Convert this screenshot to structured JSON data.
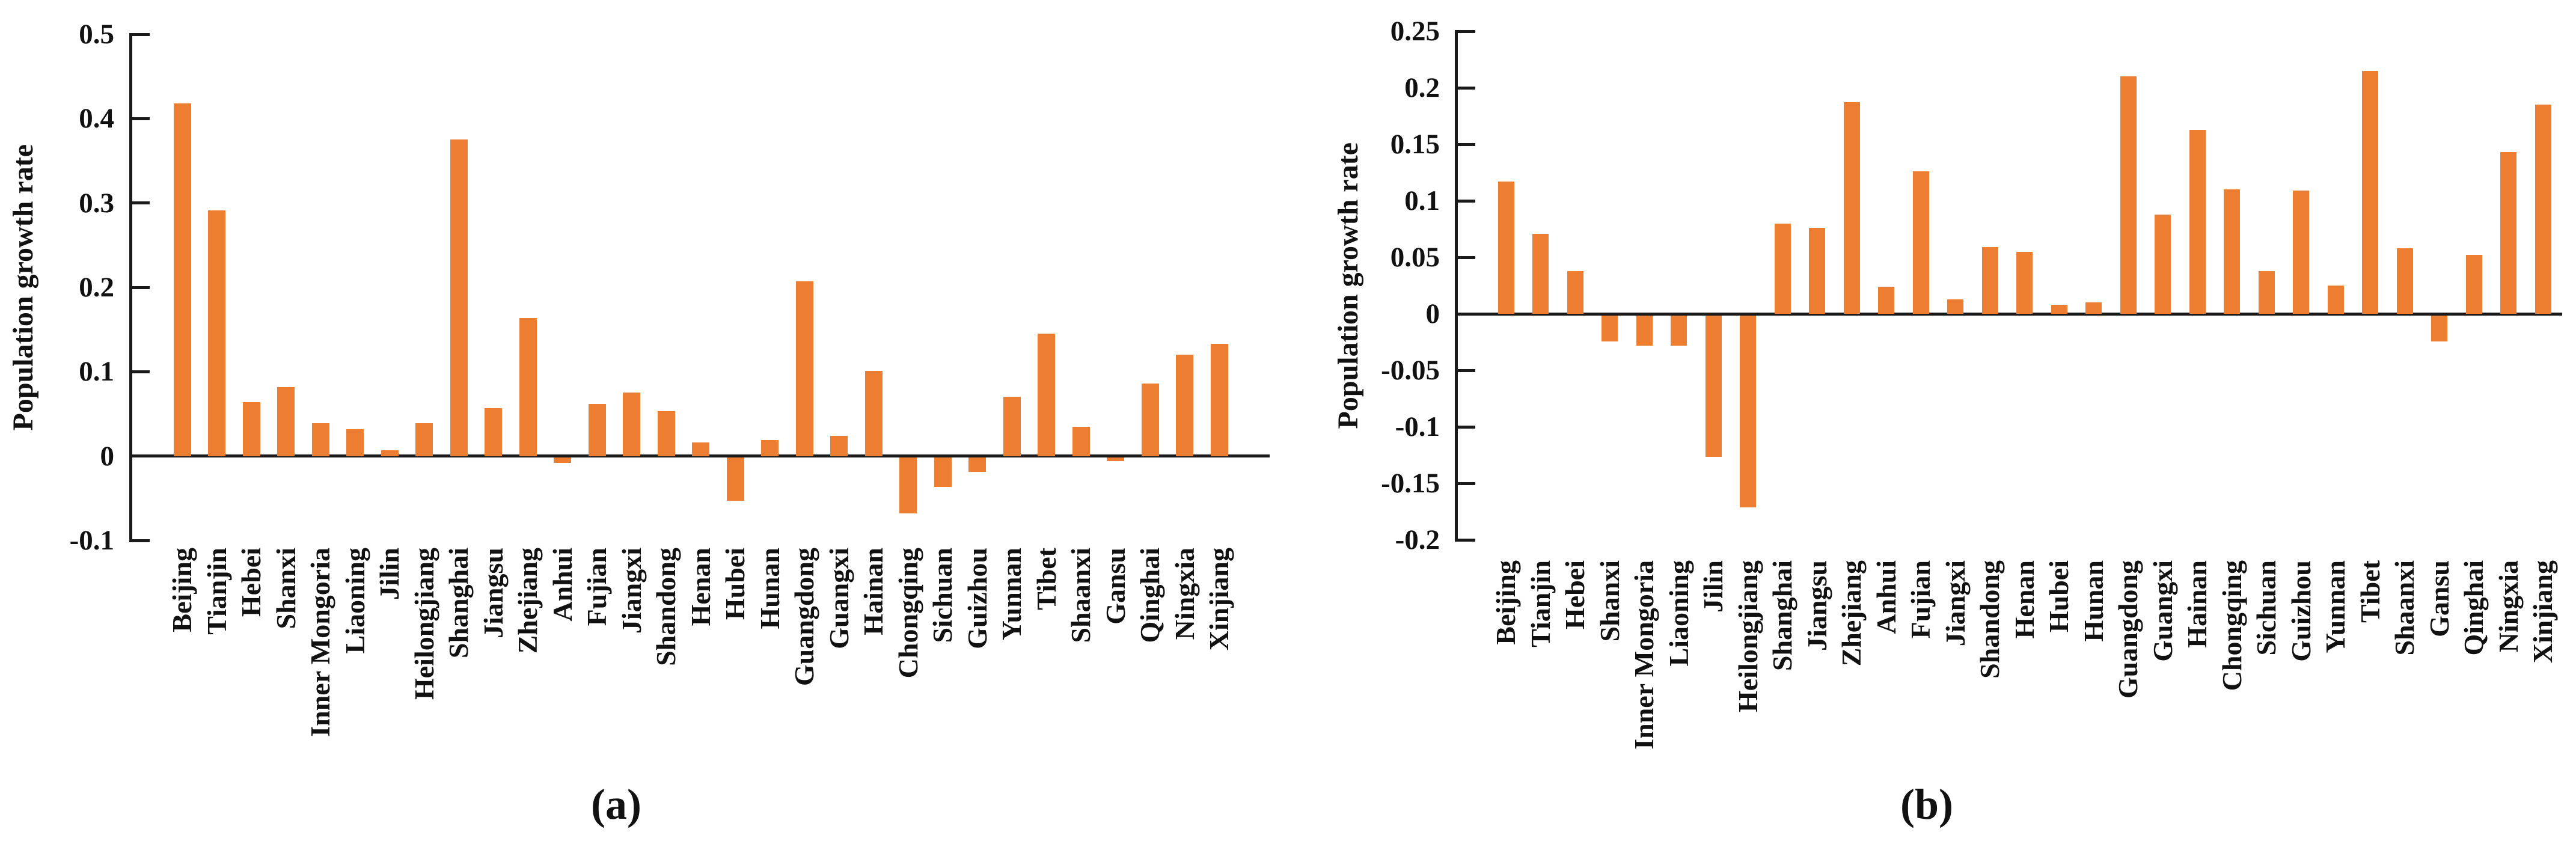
{
  "figure": {
    "background": "#ffffff",
    "axis_color": "#1a1a1a",
    "text_color": "#111111"
  },
  "chart_data": [
    {
      "id": "a",
      "type": "bar",
      "caption": "(a)",
      "ylabel": "Population growth rate",
      "bar_color": "#ED7D31",
      "grid": false,
      "legend": false,
      "ylim": [
        -0.1,
        0.5
      ],
      "ytick_labels": [
        "0.5",
        "0.4",
        "0.3",
        "0.2",
        "0.1",
        "0",
        "-0.1"
      ],
      "categories": [
        "Beijing",
        "Tianjin",
        "Hebei",
        "Shanxi",
        "Inner Mongoria",
        "Liaoning",
        "Jilin",
        "Heilongjiang",
        "Shanghai",
        "Jiangsu",
        "Zhejiang",
        "Anhui",
        "Fujian",
        "Jiangxi",
        "Shandong",
        "Henan",
        "Hubei",
        "Hunan",
        "Guangdong",
        "Guangxi",
        "Hainan",
        "Chongqing",
        "Sichuan",
        "Guizhou",
        "Yunnan",
        "Tibet",
        "Shaanxi",
        "Gansu",
        "Qinghai",
        "Ningxia",
        "Xinjiang"
      ],
      "values": [
        0.418,
        0.291,
        0.064,
        0.082,
        0.039,
        0.032,
        0.007,
        0.039,
        0.375,
        0.057,
        0.164,
        -0.006,
        0.062,
        0.075,
        0.053,
        0.016,
        -0.051,
        0.019,
        0.207,
        0.024,
        0.101,
        -0.066,
        -0.035,
        -0.017,
        0.07,
        0.145,
        0.035,
        -0.004,
        0.086,
        0.12,
        0.133
      ]
    },
    {
      "id": "b",
      "type": "bar",
      "caption": "(b)",
      "ylabel": "Population growth rate",
      "bar_color": "#ED7D31",
      "grid": false,
      "legend": false,
      "ylim": [
        -0.2,
        0.25
      ],
      "ytick_labels": [
        "0.25",
        "0.2",
        "0.15",
        "0.1",
        "0.05",
        "0",
        "-0.05",
        "-0.1",
        "-0.15",
        "-0.2"
      ],
      "categories": [
        "Beijing",
        "Tianjin",
        "Hebei",
        "Shanxi",
        "Inner Mongoria",
        "Liaoning",
        "Jilin",
        "Heilongjiang",
        "Shanghai",
        "Jiangsu",
        "Zhejiang",
        "Anhui",
        "Fujian",
        "Jiangxi",
        "Shandong",
        "Henan",
        "Hubei",
        "Hunan",
        "Guangdong",
        "Guangxi",
        "Hainan",
        "Chongqing",
        "Sichuan",
        "Guizhou",
        "Yunnan",
        "Tibet",
        "Shaanxi",
        "Gansu",
        "Qinghai",
        "Ningxia",
        "Xinjiang"
      ],
      "values": [
        0.117,
        0.071,
        0.038,
        -0.023,
        -0.027,
        -0.027,
        -0.125,
        -0.17,
        0.08,
        0.076,
        0.187,
        0.024,
        0.126,
        0.013,
        0.059,
        0.055,
        0.008,
        0.01,
        0.21,
        0.088,
        0.163,
        0.11,
        0.038,
        0.109,
        0.025,
        0.215,
        0.058,
        -0.023,
        0.052,
        0.143,
        0.185
      ]
    }
  ]
}
